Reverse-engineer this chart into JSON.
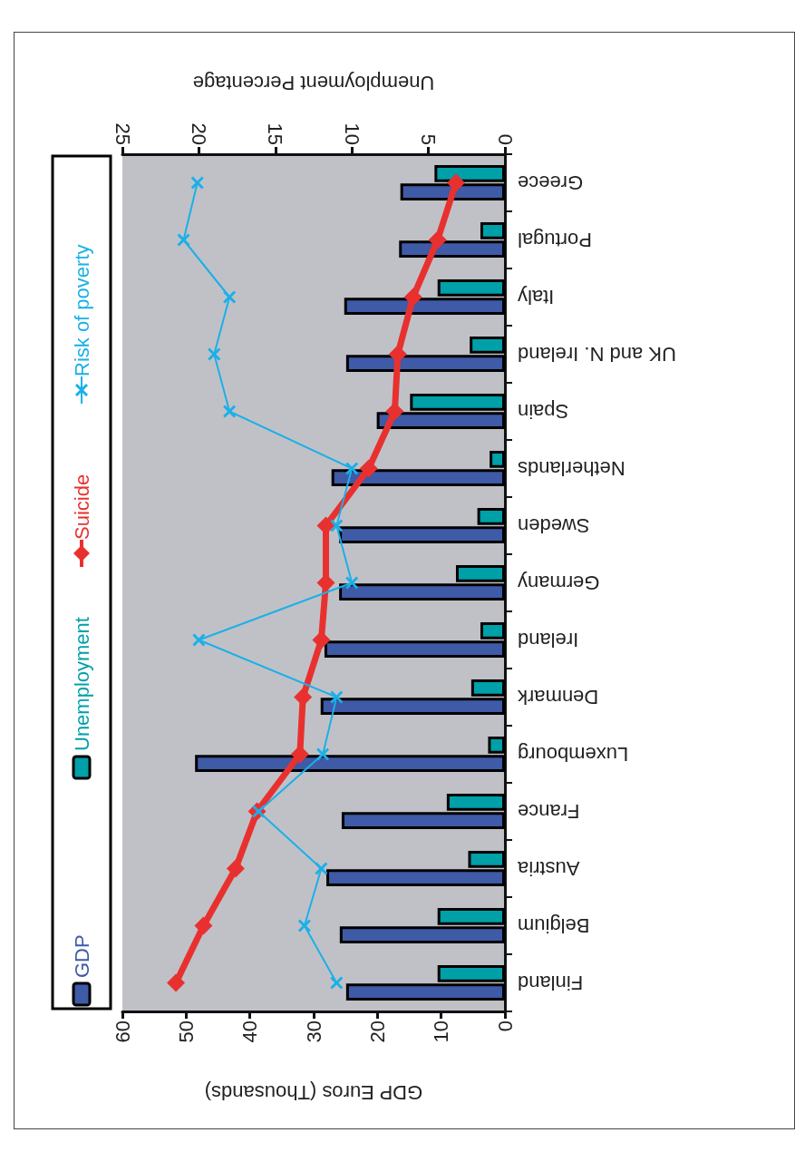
{
  "chart_data": {
    "type": "bar",
    "orientation": "horizontal",
    "categories": [
      "Greece",
      "Portugal",
      "Italy",
      "UK and N. Ireland",
      "Spain",
      "Netherlands",
      "Sweden",
      "Germany",
      "Ireland",
      "Denmark",
      "Luxembourg",
      "France",
      "Austria",
      "Belgium",
      "Finland"
    ],
    "series": [
      {
        "name": "GDP",
        "color": "#3f5aa6",
        "values": [
          16.4,
          16.6,
          25.2,
          24.9,
          20.1,
          27.2,
          26.0,
          26.0,
          28.3,
          28.9,
          48.6,
          25.6,
          28.0,
          25.9,
          24.9
        ]
      },
      {
        "name": "Unemployment",
        "axis": "x2",
        "color": "#00a0a8",
        "values": [
          4.6,
          1.6,
          4.4,
          2.3,
          6.2,
          1.0,
          1.8,
          3.2,
          1.6,
          2.2,
          1.1,
          3.8,
          2.4,
          4.4,
          4.4
        ]
      },
      {
        "name": "Suicide",
        "type": "line",
        "axis": "x2",
        "color": "#e8312f",
        "marker": "diamond",
        "values": [
          3.2,
          4.4,
          6.0,
          7.0,
          7.2,
          8.9,
          11.7,
          11.7,
          12.0,
          13.2,
          13.4,
          16.2,
          17.6,
          19.7,
          21.5
        ]
      },
      {
        "name": "Risk of poverty",
        "type": "line",
        "axis": "x2",
        "color": "#1ab0e8",
        "marker": "cross",
        "values": [
          20.1,
          21.0,
          18.0,
          19.0,
          18.0,
          10.0,
          11.0,
          10.0,
          20.0,
          11.0,
          11.9,
          16.1,
          12.0,
          13.1,
          11.0
        ]
      }
    ],
    "xlabel": "GDP Euros (Thousands)",
    "x2label": "Unemployment Percentage",
    "xlim": [
      60,
      0
    ],
    "xticks": [
      0,
      10,
      20,
      30,
      40,
      50,
      60
    ],
    "x2lim": [
      25,
      0
    ],
    "x2ticks": [
      0,
      5,
      10,
      15,
      20,
      25
    ],
    "legend": "left",
    "grid": false
  }
}
